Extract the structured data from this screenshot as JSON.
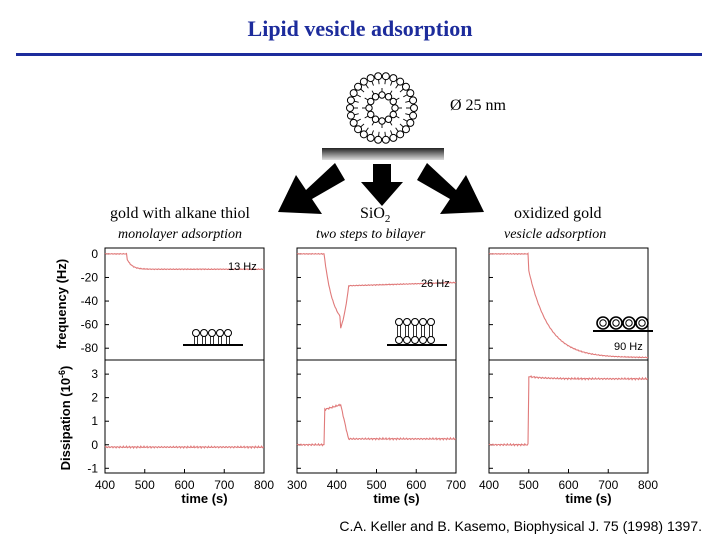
{
  "title": "Lipid vesicle adsorption",
  "vesicle_size": "Ø 25 nm",
  "labels": {
    "gold": "gold with alkane thiol",
    "gold_sub": "monolayer adsorption",
    "sio2_main": "SiO",
    "sio2_sub_digit": "2",
    "sio2_sub": "two steps to bilayer",
    "ox": "oxidized gold",
    "ox_sub": "vesicle adsorption"
  },
  "axes": {
    "freq_label": "frequency (Hz)",
    "diss_label_main": "Dissipation (10",
    "diss_label_exp": "-6",
    "diss_label_end": ")",
    "time_label": "time (s)",
    "freq_ticks": [
      "0",
      "-20",
      "-40",
      "-60",
      "-80"
    ],
    "diss_ticks": [
      "3",
      "2",
      "1",
      "0",
      "-1"
    ],
    "time_ticks_1": [
      "400",
      "500",
      "600",
      "700",
      "800"
    ],
    "time_ticks_2": [
      "300",
      "400",
      "500",
      "600",
      "700"
    ],
    "time_ticks_3": [
      "400",
      "500",
      "600",
      "700",
      "800"
    ]
  },
  "annotations": {
    "p1": "13 Hz",
    "p2": "26 Hz",
    "p3": "90 Hz"
  },
  "colors": {
    "title": "#1d2c9c",
    "trace": "#e07a7a",
    "axis": "#000000"
  },
  "citation": "C.A. Keller and B. Kasemo, Biophysical J. 75 (1998) 1397."
}
